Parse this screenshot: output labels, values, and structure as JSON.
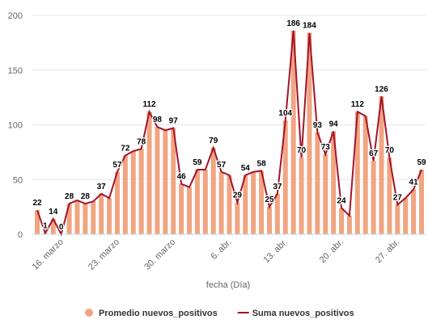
{
  "chart_data": {
    "type": "bar-line",
    "x_label": "fecha (Día)",
    "categories": [
      null,
      null,
      null,
      "16. marzo",
      null,
      null,
      null,
      null,
      null,
      null,
      "23. marzo",
      null,
      null,
      null,
      null,
      null,
      null,
      "30. marzo",
      null,
      null,
      null,
      null,
      null,
      null,
      "6. abr.",
      null,
      null,
      null,
      null,
      null,
      null,
      "13. abr.",
      null,
      null,
      null,
      null,
      null,
      null,
      "20. abr.",
      null,
      null,
      null,
      null,
      null,
      null,
      "27. abr.",
      null,
      null,
      null
    ],
    "series": [
      {
        "name": "Promedio nuevos_positivos",
        "color": "#f0a582",
        "kind": "bar",
        "values": [
          22,
          1,
          14,
          0,
          28,
          31,
          28,
          30,
          37,
          33,
          57,
          72,
          76,
          78,
          112,
          98,
          95,
          97,
          46,
          43,
          59,
          59,
          79,
          57,
          54,
          29,
          54,
          57,
          58,
          25,
          37,
          104,
          186,
          70,
          184,
          93,
          73,
          94,
          24,
          17,
          112,
          108,
          67,
          126,
          70,
          27,
          33,
          41,
          59
        ]
      },
      {
        "name": "Suma nuevos_positivos",
        "color": "#a3142a",
        "kind": "line",
        "values": [
          22,
          1,
          14,
          0,
          28,
          31,
          28,
          30,
          37,
          33,
          57,
          72,
          76,
          78,
          112,
          98,
          95,
          97,
          46,
          43,
          59,
          59,
          79,
          57,
          54,
          29,
          54,
          57,
          58,
          25,
          37,
          104,
          186,
          70,
          184,
          93,
          73,
          94,
          24,
          17,
          112,
          108,
          67,
          126,
          70,
          27,
          33,
          41,
          59
        ],
        "value_labels": [
          22,
          1,
          14,
          0,
          28,
          null,
          28,
          null,
          37,
          null,
          57,
          72,
          null,
          78,
          112,
          98,
          null,
          97,
          46,
          null,
          59,
          null,
          79,
          57,
          null,
          29,
          54,
          null,
          58,
          25,
          37,
          104,
          186,
          70,
          184,
          93,
          73,
          94,
          24,
          null,
          112,
          null,
          67,
          126,
          70,
          27,
          null,
          41,
          59
        ]
      }
    ],
    "ylim": [
      0,
      200
    ],
    "yticks": [
      0,
      50,
      100,
      150,
      200
    ],
    "grid": true
  }
}
